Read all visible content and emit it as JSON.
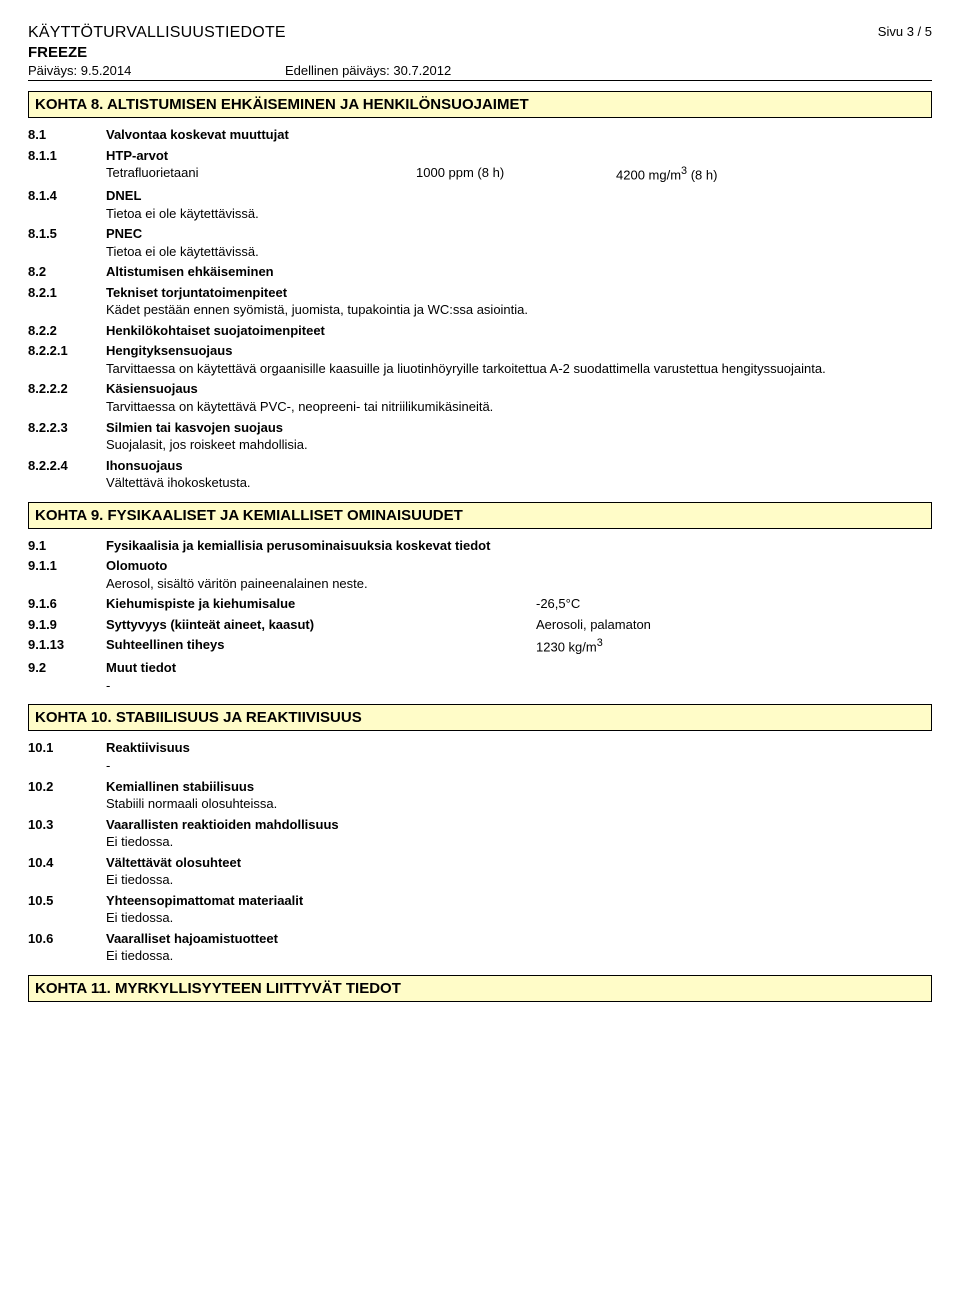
{
  "header": {
    "doc_title": "KÄYTTÖTURVALLISUUSTIEDOTE",
    "product": "FREEZE",
    "date_label": "Päiväys: 9.5.2014",
    "prev_date_label": "Edellinen päiväys: 30.7.2012",
    "page": "Sivu 3 / 5"
  },
  "s8": {
    "title": "KOHTA 8. ALTISTUMISEN EHKÄISEMINEN JA HENKILÖNSUOJAIMET",
    "r81": {
      "n": "8.1",
      "t": "Valvontaa koskevat muuttujat"
    },
    "r811": {
      "n": "8.1.1",
      "t": "HTP-arvot"
    },
    "htp": {
      "name": "Tetrafluorietaani",
      "c1": "1000 ppm (8 h)",
      "c2": "4200 mg/m",
      "c2_unit": " (8 h)",
      "c2_sup": "3"
    },
    "r814": {
      "n": "8.1.4",
      "t": "DNEL",
      "body": "Tietoa ei ole käytettävissä."
    },
    "r815": {
      "n": "8.1.5",
      "t": "PNEC",
      "body": "Tietoa ei ole käytettävissä."
    },
    "r82": {
      "n": "8.2",
      "t": "Altistumisen ehkäiseminen"
    },
    "r821": {
      "n": "8.2.1",
      "t": "Tekniset torjuntatoimenpiteet",
      "body": "Kädet pestään ennen syömistä, juomista, tupakointia ja WC:ssa asiointia."
    },
    "r822": {
      "n": "8.2.2",
      "t": "Henkilökohtaiset suojatoimenpiteet"
    },
    "r8221": {
      "n": "8.2.2.1",
      "t": "Hengityksensuojaus",
      "body": "Tarvittaessa on käytettävä orgaanisille kaasuille ja liuotinhöyryille tarkoitettua A-2 suodattimella varustettua hengityssuojainta."
    },
    "r8222": {
      "n": "8.2.2.2",
      "t": "Käsiensuojaus",
      "body": "Tarvittaessa on käytettävä PVC-, neopreeni- tai nitriilikumikäsineitä."
    },
    "r8223": {
      "n": "8.2.2.3",
      "t": "Silmien tai kasvojen suojaus",
      "body": "Suojalasit, jos roiskeet mahdollisia."
    },
    "r8224": {
      "n": "8.2.2.4",
      "t": "Ihonsuojaus",
      "body": "Vältettävä ihokosketusta."
    }
  },
  "s9": {
    "title": "KOHTA 9. FYSIKAALISET JA KEMIALLISET OMINAISUUDET",
    "r91": {
      "n": "9.1",
      "t": "Fysikaalisia ja kemiallisia perusominaisuuksia koskevat tiedot"
    },
    "r911": {
      "n": "9.1.1",
      "t": "Olomuoto",
      "body": "Aerosol, sisältö väritön paineenalainen neste."
    },
    "r916": {
      "n": "9.1.6",
      "t": "Kiehumispiste ja kiehumisalue",
      "v": "-26,5°C"
    },
    "r919": {
      "n": "9.1.9",
      "t": "Syttyvyys (kiinteät aineet, kaasut)",
      "v": "Aerosoli, palamaton"
    },
    "r9113": {
      "n": "9.1.13",
      "t": "Suhteellinen tiheys",
      "v": "1230 kg/m",
      "v_sup": "3"
    },
    "r92": {
      "n": "9.2",
      "t": "Muut tiedot",
      "body": "-"
    }
  },
  "s10": {
    "title": "KOHTA 10. STABIILISUUS JA REAKTIIVISUUS",
    "r101": {
      "n": "10.1",
      "t": "Reaktiivisuus",
      "body": "-"
    },
    "r102": {
      "n": "10.2",
      "t": "Kemiallinen stabiilisuus",
      "body": "Stabiili normaali olosuhteissa."
    },
    "r103": {
      "n": "10.3",
      "t": "Vaarallisten reaktioiden mahdollisuus",
      "body": "Ei tiedossa."
    },
    "r104": {
      "n": "10.4",
      "t": "Vältettävät olosuhteet",
      "body": "Ei tiedossa."
    },
    "r105": {
      "n": "10.5",
      "t": "Yhteensopimattomat materiaalit",
      "body": "Ei tiedossa."
    },
    "r106": {
      "n": "10.6",
      "t": "Vaaralliset hajoamistuotteet",
      "body": "Ei tiedossa."
    }
  },
  "s11": {
    "title": "KOHTA 11. MYRKYLLISYYTEEN LIITTYVÄT TIEDOT"
  }
}
